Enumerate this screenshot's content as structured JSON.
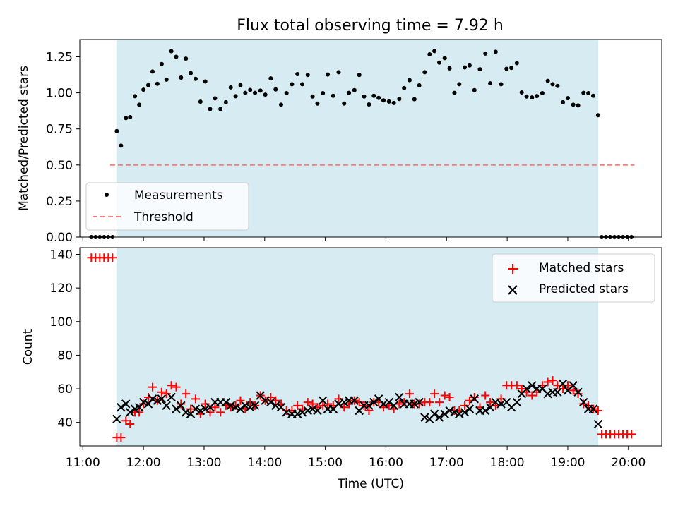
{
  "title": "Flux total observing time = 7.92 h",
  "colors": {
    "observing_span": "#add8e6",
    "measurements": "#000000",
    "threshold": "#f08080",
    "matched": "#ff0000",
    "predicted": "#000000"
  },
  "chart_data": [
    {
      "type": "scatter",
      "panel": "top",
      "ylabel": "Matched/Predicted stars",
      "xlim": [
        10.95,
        20.55
      ],
      "ylim": [
        0,
        1.37
      ],
      "yticks": [
        "0.00",
        "0.25",
        "0.50",
        "0.75",
        "1.00",
        "1.25"
      ],
      "ytick_values": [
        0,
        0.25,
        0.5,
        0.75,
        1.0,
        1.25
      ],
      "grid": false,
      "legend_position": "lower-left",
      "observing_span": [
        11.56,
        19.49
      ],
      "series": [
        {
          "name": "Measurements",
          "marker": "dot",
          "x": [
            11.14,
            11.21,
            11.28,
            11.35,
            11.42,
            11.49,
            11.56,
            11.63,
            11.71,
            11.78,
            11.86,
            11.93,
            12.0,
            12.08,
            12.15,
            12.23,
            12.3,
            12.38,
            12.46,
            12.54,
            12.62,
            12.7,
            12.78,
            12.86,
            12.94,
            13.02,
            13.1,
            13.18,
            13.27,
            13.36,
            13.44,
            13.52,
            13.6,
            13.68,
            13.76,
            13.84,
            13.93,
            14.01,
            14.1,
            14.18,
            14.27,
            14.36,
            14.45,
            14.54,
            14.62,
            14.71,
            14.79,
            14.87,
            14.96,
            15.04,
            15.13,
            15.22,
            15.31,
            15.39,
            15.48,
            15.56,
            15.64,
            15.72,
            15.8,
            15.88,
            15.96,
            16.05,
            16.13,
            16.22,
            16.3,
            16.39,
            16.47,
            16.55,
            16.64,
            16.72,
            16.8,
            16.88,
            16.97,
            17.05,
            17.13,
            17.21,
            17.3,
            17.38,
            17.46,
            17.55,
            17.64,
            17.72,
            17.81,
            17.9,
            17.99,
            18.07,
            18.16,
            18.24,
            18.32,
            18.41,
            18.49,
            18.58,
            18.67,
            18.75,
            18.83,
            18.92,
            19.0,
            19.09,
            19.17,
            19.26,
            19.34,
            19.42,
            19.5,
            19.56,
            19.63,
            19.7,
            19.77,
            19.84,
            19.91,
            19.98,
            20.05
          ],
          "y": [
            0,
            0,
            0,
            0,
            0,
            0,
            0.735,
            0.634,
            0.825,
            0.832,
            0.977,
            0.918,
            1.022,
            1.054,
            1.148,
            1.063,
            1.2,
            1.092,
            1.289,
            1.25,
            1.106,
            1.237,
            1.137,
            1.097,
            0.939,
            1.079,
            0.888,
            0.962,
            0.888,
            0.935,
            1.038,
            0.977,
            1.054,
            1.0,
            1.02,
            1.0,
            1.016,
            0.988,
            1.1,
            1.024,
            0.918,
            0.998,
            1.06,
            1.13,
            1.06,
            1.124,
            0.975,
            0.926,
            0.998,
            1.127,
            0.98,
            1.143,
            0.926,
            1.0,
            1.019,
            1.124,
            0.975,
            0.92,
            0.98,
            0.965,
            0.948,
            0.94,
            0.93,
            0.958,
            1.033,
            1.088,
            0.956,
            1.052,
            1.143,
            1.267,
            1.29,
            1.21,
            1.241,
            1.17,
            1.0,
            1.06,
            1.177,
            1.19,
            1.019,
            1.164,
            1.273,
            1.066,
            1.285,
            1.06,
            1.167,
            1.173,
            1.206,
            1.003,
            0.975,
            0.968,
            0.978,
            0.998,
            1.083,
            1.06,
            1.048,
            0.935,
            0.963,
            0.918,
            0.913,
            1.0,
            0.998,
            0.98,
            0.845,
            0,
            0,
            0,
            0,
            0,
            0,
            0,
            0
          ]
        },
        {
          "name": "Threshold",
          "style": "dashed",
          "x": [
            11.45,
            20.1
          ],
          "y": [
            0.5,
            0.5
          ]
        }
      ]
    },
    {
      "type": "scatter",
      "panel": "bottom",
      "xlabel": "Time (UTC)",
      "ylabel": "Count",
      "xlim": [
        10.95,
        20.55
      ],
      "ylim": [
        26,
        144
      ],
      "xticks": [
        "11:00",
        "12:00",
        "13:00",
        "14:00",
        "15:00",
        "16:00",
        "17:00",
        "18:00",
        "19:00",
        "20:00"
      ],
      "xtick_values": [
        11,
        12,
        13,
        14,
        15,
        16,
        17,
        18,
        19,
        20
      ],
      "yticks": [
        "40",
        "60",
        "80",
        "100",
        "120",
        "140"
      ],
      "ytick_values": [
        40,
        60,
        80,
        100,
        120,
        140
      ],
      "grid": false,
      "legend_position": "upper-right",
      "observing_span": [
        11.56,
        19.49
      ],
      "series": [
        {
          "name": "Matched stars",
          "marker": "plus",
          "x": [
            11.14,
            11.21,
            11.28,
            11.35,
            11.42,
            11.49,
            11.56,
            11.63,
            11.71,
            11.78,
            11.86,
            11.93,
            12.0,
            12.08,
            12.15,
            12.23,
            12.3,
            12.38,
            12.46,
            12.54,
            12.62,
            12.7,
            12.78,
            12.86,
            12.94,
            13.02,
            13.1,
            13.18,
            13.27,
            13.36,
            13.44,
            13.52,
            13.6,
            13.68,
            13.76,
            13.84,
            13.93,
            14.01,
            14.1,
            14.18,
            14.27,
            14.36,
            14.45,
            14.54,
            14.62,
            14.71,
            14.79,
            14.87,
            14.96,
            15.04,
            15.13,
            15.22,
            15.31,
            15.39,
            15.48,
            15.56,
            15.64,
            15.72,
            15.8,
            15.88,
            15.96,
            16.05,
            16.13,
            16.22,
            16.3,
            16.39,
            16.47,
            16.55,
            16.64,
            16.72,
            16.8,
            16.88,
            16.97,
            17.05,
            17.13,
            17.21,
            17.3,
            17.38,
            17.46,
            17.55,
            17.64,
            17.72,
            17.81,
            17.9,
            17.99,
            18.07,
            18.16,
            18.24,
            18.32,
            18.41,
            18.49,
            18.58,
            18.67,
            18.75,
            18.83,
            18.92,
            19.0,
            19.09,
            19.17,
            19.26,
            19.34,
            19.42,
            19.5,
            19.56,
            19.63,
            19.7,
            19.77,
            19.84,
            19.91,
            19.98,
            20.05
          ],
          "y": [
            138,
            138,
            138,
            138,
            138,
            138,
            31,
            31,
            41,
            39,
            46,
            46,
            51,
            55,
            61,
            53,
            58,
            57,
            62,
            61,
            51,
            57,
            48,
            54,
            45,
            51,
            46,
            49,
            46,
            50,
            49,
            50,
            53,
            48,
            52,
            50,
            56,
            53,
            55,
            53,
            51,
            47,
            47,
            50,
            48,
            52,
            51,
            49,
            50,
            51,
            50,
            54,
            49,
            51,
            53,
            52,
            50,
            47,
            52,
            52,
            49,
            50,
            48,
            51,
            52,
            57,
            51,
            51,
            52,
            52,
            57,
            52,
            56,
            55,
            47,
            47,
            50,
            53,
            55,
            49,
            56,
            52,
            50,
            54,
            62,
            62,
            62,
            60,
            58,
            56,
            58,
            62,
            64,
            65,
            62,
            60,
            62,
            59,
            57,
            51,
            50,
            48,
            47,
            33,
            33,
            33,
            33,
            33,
            33,
            33,
            33
          ]
        },
        {
          "name": "Predicted stars",
          "marker": "x",
          "x": [
            11.56,
            11.63,
            11.71,
            11.78,
            11.86,
            11.93,
            12.0,
            12.08,
            12.15,
            12.23,
            12.3,
            12.38,
            12.46,
            12.54,
            12.62,
            12.7,
            12.78,
            12.86,
            12.94,
            13.02,
            13.1,
            13.18,
            13.27,
            13.36,
            13.44,
            13.52,
            13.6,
            13.68,
            13.76,
            13.84,
            13.93,
            14.01,
            14.1,
            14.18,
            14.27,
            14.36,
            14.45,
            14.54,
            14.62,
            14.71,
            14.79,
            14.87,
            14.96,
            15.04,
            15.13,
            15.22,
            15.31,
            15.39,
            15.48,
            15.56,
            15.64,
            15.72,
            15.8,
            15.88,
            15.96,
            16.05,
            16.13,
            16.22,
            16.3,
            16.39,
            16.47,
            16.55,
            16.64,
            16.72,
            16.8,
            16.88,
            16.97,
            17.05,
            17.13,
            17.21,
            17.3,
            17.38,
            17.46,
            17.55,
            17.64,
            17.72,
            17.81,
            17.9,
            17.99,
            18.07,
            18.16,
            18.24,
            18.32,
            18.41,
            18.49,
            18.58,
            18.67,
            18.75,
            18.83,
            18.92,
            19.0,
            19.09,
            19.17,
            19.26,
            19.34,
            19.42,
            19.5
          ],
          "y": [
            42,
            49,
            51,
            46,
            48,
            49,
            52,
            51,
            54,
            53,
            54,
            50,
            55,
            48,
            50,
            46,
            45,
            48,
            47,
            48,
            49,
            52,
            52,
            52,
            50,
            49,
            48,
            50,
            49,
            50,
            56,
            53,
            52,
            50,
            49,
            46,
            45,
            45,
            46,
            47,
            48,
            47,
            53,
            48,
            48,
            51,
            52,
            53,
            53,
            47,
            50,
            50,
            52,
            54,
            51,
            52,
            50,
            55,
            51,
            51,
            51,
            52,
            43,
            42,
            45,
            43,
            45,
            47,
            46,
            45,
            46,
            48,
            54,
            47,
            47,
            49,
            52,
            51,
            52,
            49,
            52,
            57,
            60,
            62,
            60,
            60,
            57,
            58,
            58,
            63,
            59,
            62,
            58,
            52,
            48,
            48,
            39
          ]
        }
      ]
    }
  ]
}
